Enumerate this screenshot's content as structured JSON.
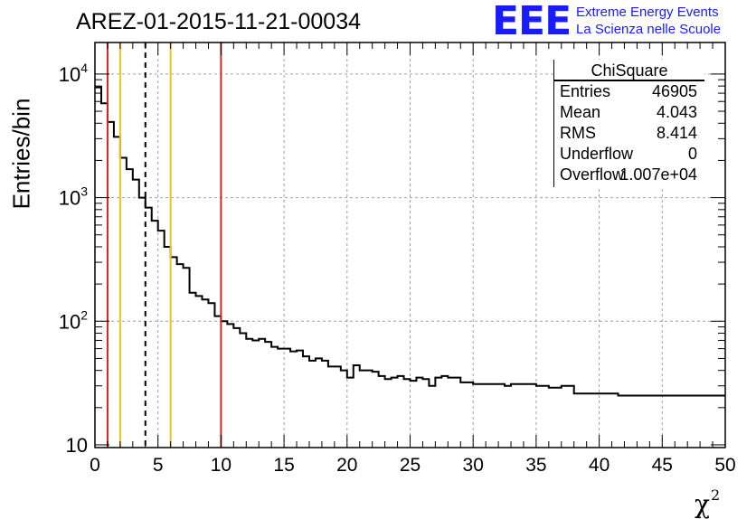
{
  "title": "AREZ-01-2015-11-21-00034",
  "logo": {
    "mark": "EEE",
    "line1": "Extreme Energy Events",
    "line2": "La Scienza nelle Scuole"
  },
  "stats": {
    "name": "ChiSquare",
    "rows": [
      {
        "key": "Entries",
        "value": "46905"
      },
      {
        "key": "Mean",
        "value": "4.043"
      },
      {
        "key": "RMS",
        "value": "8.414"
      },
      {
        "key": "Underflow",
        "value": "0"
      },
      {
        "key": "Overflow",
        "value": "1.007e+04"
      }
    ]
  },
  "chart_data": {
    "type": "histogram",
    "title": "AREZ-01-2015-11-21-00034",
    "xlabel": "χ",
    "xlabel_superscript": "2",
    "ylabel": "Entries/bin",
    "xlim": [
      0,
      50
    ],
    "ylim": [
      9.5,
      18000
    ],
    "y_scale": "log",
    "grid": true,
    "x_ticks": [
      "0",
      "5",
      "10",
      "15",
      "20",
      "25",
      "30",
      "35",
      "40",
      "45",
      "50"
    ],
    "y_ticks": [
      {
        "base": "10",
        "exp": ""
      },
      {
        "base": "10",
        "exp": "2"
      },
      {
        "base": "10",
        "exp": "3"
      },
      {
        "base": "10",
        "exp": "4"
      }
    ],
    "bin_width": 0.5,
    "counts": [
      7800,
      5800,
      4100,
      3100,
      2100,
      1700,
      1400,
      1000,
      830,
      650,
      540,
      400,
      330,
      290,
      270,
      170,
      160,
      150,
      140,
      110,
      100,
      95,
      88,
      80,
      72,
      70,
      72,
      68,
      62,
      60,
      60,
      57,
      58,
      52,
      48,
      50,
      48,
      43,
      43,
      40,
      35,
      44,
      40,
      40,
      39,
      36,
      34,
      35,
      36,
      34,
      33,
      35,
      34,
      30,
      35,
      36,
      35,
      35,
      32,
      32,
      31,
      31,
      31,
      31,
      31,
      30,
      31,
      31,
      31,
      31,
      30,
      30,
      29,
      29,
      30,
      30,
      26,
      26,
      26,
      26,
      26,
      26,
      26,
      25,
      25,
      25,
      25,
      25,
      25,
      25,
      25,
      25,
      25,
      25,
      25,
      25,
      25,
      25,
      25,
      25
    ],
    "vertical_lines": [
      {
        "x": 1,
        "color": "#e02020",
        "style": "solid"
      },
      {
        "x": 2,
        "color": "#f0c020",
        "style": "solid"
      },
      {
        "x": 4,
        "color": "#000000",
        "style": "dashed"
      },
      {
        "x": 6,
        "color": "#f0c020",
        "style": "solid"
      },
      {
        "x": 10,
        "color": "#e02020",
        "style": "solid"
      }
    ]
  }
}
